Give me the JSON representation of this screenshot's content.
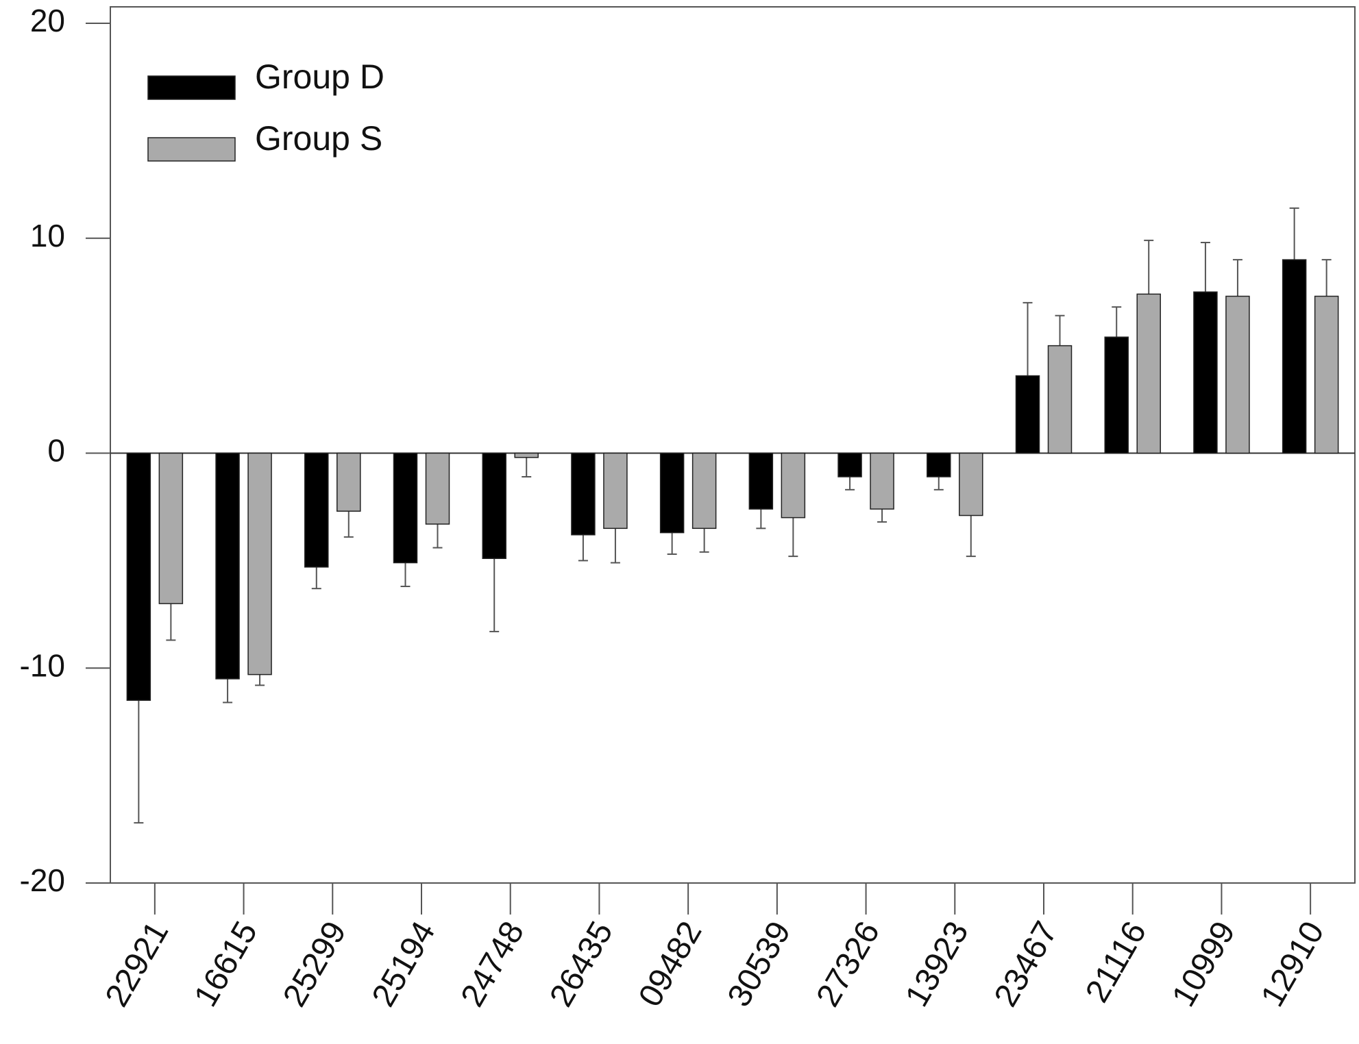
{
  "chart_data": {
    "type": "bar",
    "categories": [
      "22921",
      "16615",
      "25299",
      "25194",
      "24748",
      "26435",
      "09482",
      "30539",
      "27326",
      "13923",
      "23467",
      "21116",
      "10999",
      "12910"
    ],
    "series": [
      {
        "name": "Group D",
        "color": "#000000",
        "values": [
          -11.5,
          -10.5,
          -5.3,
          -5.1,
          -4.9,
          -3.8,
          -3.7,
          -2.6,
          -1.1,
          -1.1,
          3.6,
          5.4,
          7.5,
          9.0
        ],
        "errors": [
          5.7,
          1.1,
          1.0,
          1.1,
          3.4,
          1.2,
          1.0,
          0.9,
          0.6,
          0.6,
          3.4,
          1.4,
          2.3,
          2.4
        ]
      },
      {
        "name": "Group S",
        "color": "#aaaaaa",
        "values": [
          -7.0,
          -10.3,
          -2.7,
          -3.3,
          -0.2,
          -3.5,
          -3.5,
          -3.0,
          -2.6,
          -2.9,
          5.0,
          7.4,
          7.3,
          7.3
        ],
        "errors": [
          1.7,
          0.5,
          1.2,
          1.1,
          0.9,
          1.6,
          1.1,
          1.8,
          0.6,
          1.9,
          1.4,
          2.5,
          1.7,
          1.7
        ]
      }
    ],
    "ylim": [
      -20,
      20
    ],
    "yticks": [
      -20,
      -10,
      0,
      10,
      20
    ],
    "grid": false
  }
}
